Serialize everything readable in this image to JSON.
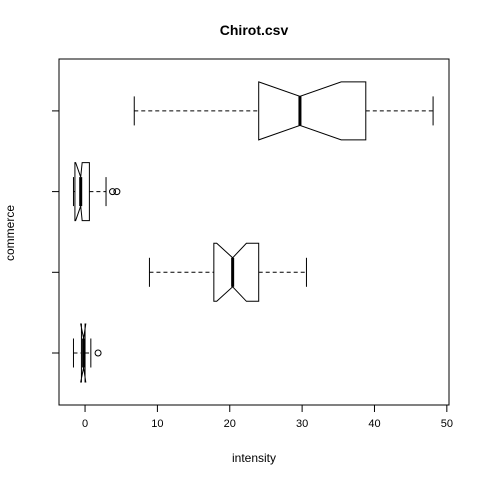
{
  "chart_data": {
    "type": "boxplot",
    "orientation": "horizontal",
    "notched": true,
    "title": "Chirot.csv",
    "xlabel": "intensity",
    "ylabel": "commerce",
    "xlim": [
      -3.6,
      50.3
    ],
    "x_ticks": [
      0,
      10,
      20,
      30,
      40,
      50
    ],
    "x_tick_labels": [
      "0",
      "10",
      "20",
      "30",
      "40",
      "50"
    ],
    "y_tick_count": 4,
    "box_color": "#000000",
    "boxes": [
      {
        "position": 1,
        "whisker_low": -1.6,
        "q1": -0.5,
        "notch_low": -0.6,
        "median": -0.2,
        "notch_high": 0.1,
        "q3": 0.0,
        "whisker_high": 0.8,
        "outliers": [
          1.8
        ]
      },
      {
        "position": 2,
        "whisker_low": 8.9,
        "q1": 17.8,
        "notch_low": 18.2,
        "median": 20.4,
        "notch_high": 22.3,
        "q3": 24.0,
        "whisker_high": 30.6,
        "outliers": []
      },
      {
        "position": 3,
        "whisker_low": -1.6,
        "q1": -1.4,
        "notch_low": -1.3,
        "median": -0.6,
        "notch_high": -0.4,
        "q3": 0.6,
        "whisker_high": 2.9,
        "outliers": [
          3.8,
          4.4
        ]
      },
      {
        "position": 4,
        "whisker_low": 6.8,
        "q1": 24.0,
        "notch_low": 24.0,
        "median": 29.7,
        "notch_high": 35.4,
        "q3": 38.8,
        "whisker_high": 48.1,
        "outliers": []
      }
    ]
  }
}
